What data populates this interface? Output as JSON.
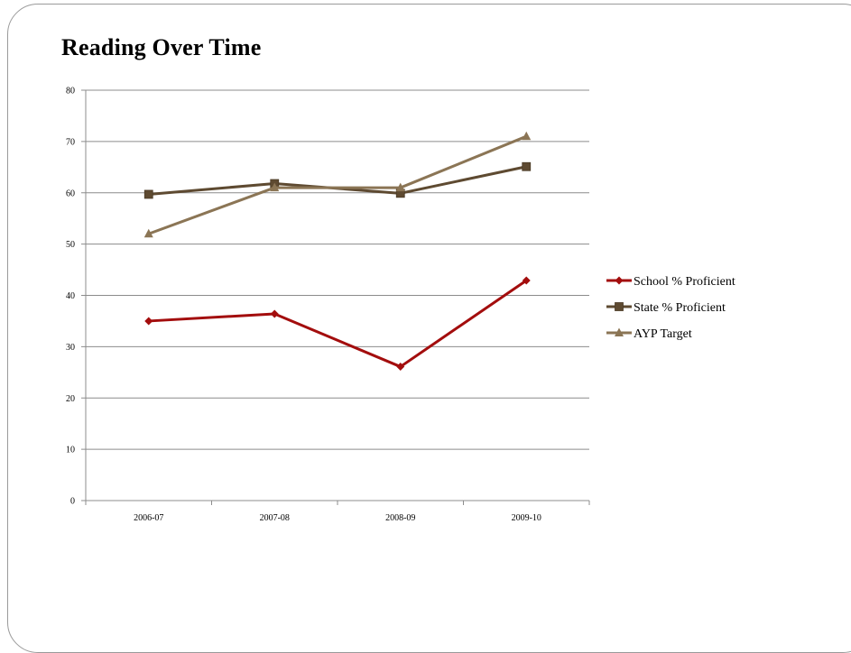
{
  "slide": {
    "title": "Reading Over Time"
  },
  "chart_data": {
    "type": "line",
    "title": "",
    "xlabel": "",
    "ylabel": "",
    "categories": [
      "2006-07",
      "2007-08",
      "2008-09",
      "2009-10"
    ],
    "ylim": [
      0,
      80
    ],
    "yticks": [
      0,
      10,
      20,
      30,
      40,
      50,
      60,
      70,
      80
    ],
    "grid": true,
    "legend_position": "right",
    "series": [
      {
        "name": "School % Proficient",
        "values": [
          35,
          36.4,
          26.1,
          42.9
        ],
        "color": "#a30d0d",
        "marker": "diamond"
      },
      {
        "name": "State % Proficient",
        "values": [
          59.7,
          61.8,
          59.9,
          65.1
        ],
        "color": "#5e4a31",
        "marker": "square"
      },
      {
        "name": "AYP Target",
        "values": [
          52,
          61,
          61,
          71
        ],
        "color": "#8b7555",
        "marker": "triangle"
      }
    ]
  }
}
